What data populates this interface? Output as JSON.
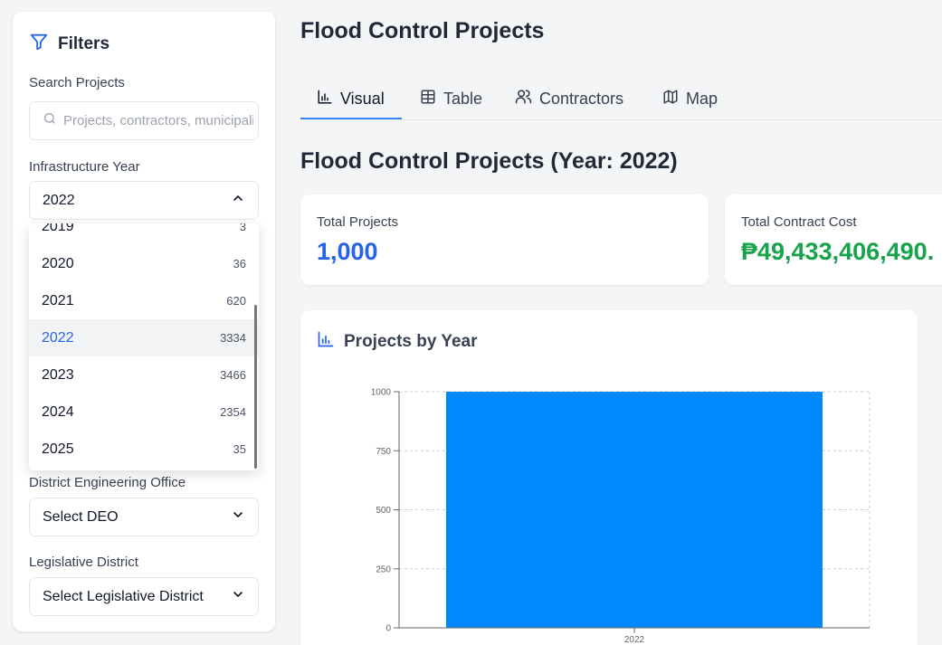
{
  "sidebar": {
    "title": "Filters",
    "search": {
      "label": "Search Projects",
      "placeholder": "Projects, contractors, municipalities..."
    },
    "year": {
      "label": "Infrastructure Year",
      "selected": "2022",
      "options": [
        {
          "year": "2019",
          "count": "3"
        },
        {
          "year": "2020",
          "count": "36"
        },
        {
          "year": "2021",
          "count": "620"
        },
        {
          "year": "2022",
          "count": "3334"
        },
        {
          "year": "2023",
          "count": "3466"
        },
        {
          "year": "2024",
          "count": "2354"
        },
        {
          "year": "2025",
          "count": "35"
        }
      ]
    },
    "deo": {
      "label": "District Engineering Office",
      "value": "Select DEO"
    },
    "legislative": {
      "label": "Legislative District",
      "value": "Select Legislative District"
    }
  },
  "header": {
    "title": "Flood Control Projects"
  },
  "tabs": [
    {
      "label": "Visual",
      "icon": "bar-chart-icon",
      "active": true
    },
    {
      "label": "Table",
      "icon": "table-icon",
      "active": false
    },
    {
      "label": "Contractors",
      "icon": "users-icon",
      "active": false
    },
    {
      "label": "Map",
      "icon": "map-icon",
      "active": false
    }
  ],
  "section": {
    "title": "Flood Control Projects (Year: 2022)"
  },
  "stats": {
    "total_projects": {
      "label": "Total Projects",
      "value": "1,000"
    },
    "total_cost": {
      "label": "Total Contract Cost",
      "value": "₱49,433,406,490."
    }
  },
  "colors": {
    "accent": "#2563eb",
    "money": "#16a34a",
    "bar": "#0088fe"
  },
  "chart_title": "Projects by Year",
  "chart_data": {
    "type": "bar",
    "title": "Projects by Year",
    "categories": [
      "2022"
    ],
    "values": [
      1000
    ],
    "ylim": [
      0,
      1000
    ],
    "yticks": [
      0,
      250,
      500,
      750,
      1000
    ],
    "grid": true
  }
}
